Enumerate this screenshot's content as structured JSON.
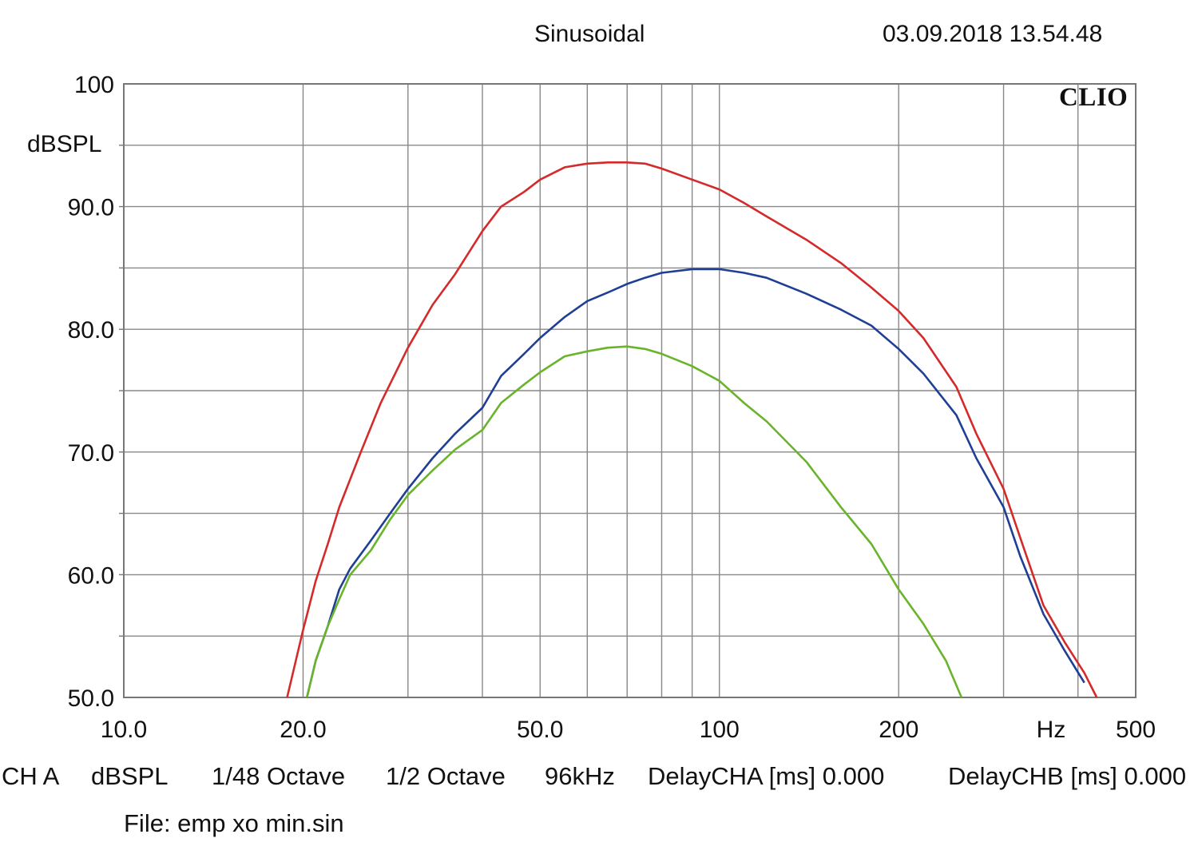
{
  "header": {
    "title": "Sinusoidal",
    "timestamp": "03.09.2018 13.54.48"
  },
  "brand": "CLIO",
  "chart_data": {
    "type": "line",
    "title": "Sinusoidal",
    "ylabel": "dBSPL",
    "xlabel": "Hz",
    "x_scale": "log",
    "xlim": [
      10,
      500
    ],
    "ylim": [
      50,
      100
    ],
    "grid": true,
    "x_ticks": [
      {
        "value": 10,
        "label": "10.0"
      },
      {
        "value": 20,
        "label": "20.0"
      },
      {
        "value": 50,
        "label": "50.0"
      },
      {
        "value": 100,
        "label": "100"
      },
      {
        "value": 200,
        "label": "200"
      },
      {
        "value": 500,
        "label": "500"
      }
    ],
    "y_ticks": [
      {
        "value": 50,
        "label": "50.0"
      },
      {
        "value": 60,
        "label": "60.0"
      },
      {
        "value": 70,
        "label": "70.0"
      },
      {
        "value": 80,
        "label": "80.0"
      },
      {
        "value": 90,
        "label": "90.0"
      },
      {
        "value": 100,
        "label": "100"
      }
    ],
    "series": [
      {
        "color": "#d42a2a",
        "x": [
          18.8,
          20.0,
          21.0,
          22.0,
          23.0,
          25.0,
          27.0,
          30.0,
          33.0,
          36.0,
          40.0,
          43.0,
          47.0,
          50.0,
          55.0,
          60.0,
          65.0,
          70.0,
          75.0,
          80.0,
          90.0,
          100.0,
          110.0,
          120.0,
          140.0,
          160.0,
          180.0,
          200.0,
          220.0,
          250.0,
          270.0,
          300.0,
          320.0,
          350.0,
          380.0,
          410.0,
          430.0
        ],
        "y": [
          50.0,
          55.5,
          59.5,
          62.5,
          65.5,
          70.0,
          74.0,
          78.5,
          82.0,
          84.5,
          88.0,
          90.0,
          91.2,
          92.2,
          93.2,
          93.5,
          93.6,
          93.6,
          93.5,
          93.1,
          92.2,
          91.4,
          90.3,
          89.2,
          87.3,
          85.4,
          83.4,
          81.5,
          79.3,
          75.3,
          71.5,
          67.0,
          63.0,
          57.5,
          54.5,
          52.0,
          50.0
        ]
      },
      {
        "color": "#1f3f95",
        "x": [
          20.3,
          21.0,
          22.0,
          23.0,
          24.0,
          26.0,
          28.0,
          30.0,
          33.0,
          36.0,
          40.0,
          43.0,
          47.0,
          50.0,
          55.0,
          60.0,
          65.0,
          70.0,
          75.0,
          80.0,
          90.0,
          100.0,
          110.0,
          120.0,
          140.0,
          160.0,
          180.0,
          200.0,
          220.0,
          250.0,
          270.0,
          300.0,
          320.0,
          350.0,
          380.0,
          410.0
        ],
        "y": [
          50.0,
          53.0,
          55.8,
          58.8,
          60.5,
          62.8,
          65.0,
          67.0,
          69.5,
          71.5,
          73.6,
          76.2,
          78.0,
          79.3,
          81.0,
          82.3,
          83.0,
          83.7,
          84.2,
          84.6,
          84.9,
          84.9,
          84.6,
          84.2,
          82.9,
          81.6,
          80.3,
          78.4,
          76.4,
          73.0,
          69.5,
          65.5,
          61.5,
          56.8,
          53.8,
          51.2
        ]
      },
      {
        "color": "#6ab42c",
        "x": [
          20.3,
          21.0,
          22.0,
          23.0,
          24.0,
          26.0,
          28.0,
          30.0,
          33.0,
          36.0,
          40.0,
          43.0,
          47.0,
          50.0,
          55.0,
          60.0,
          65.0,
          70.0,
          75.0,
          80.0,
          90.0,
          100.0,
          110.0,
          120.0,
          140.0,
          160.0,
          180.0,
          200.0,
          220.0,
          240.0,
          255.0
        ],
        "y": [
          50.0,
          53.0,
          55.8,
          58.0,
          60.0,
          62.0,
          64.5,
          66.5,
          68.5,
          70.2,
          71.8,
          74.0,
          75.5,
          76.5,
          77.8,
          78.2,
          78.5,
          78.6,
          78.4,
          78.0,
          77.0,
          75.8,
          74.0,
          72.5,
          69.2,
          65.5,
          62.5,
          58.8,
          56.0,
          53.0,
          50.0
        ]
      }
    ]
  },
  "footer": {
    "channel": "CH A",
    "units": "dBSPL",
    "resolution": "1/48 Octave",
    "smoothing": "1/2 Octave",
    "sample_rate": "96kHz",
    "delay_cha": "DelayCHA [ms] 0.000",
    "delay_chb": "DelayCHB [ms] 0.000",
    "file": "File: emp xo min.sin"
  }
}
